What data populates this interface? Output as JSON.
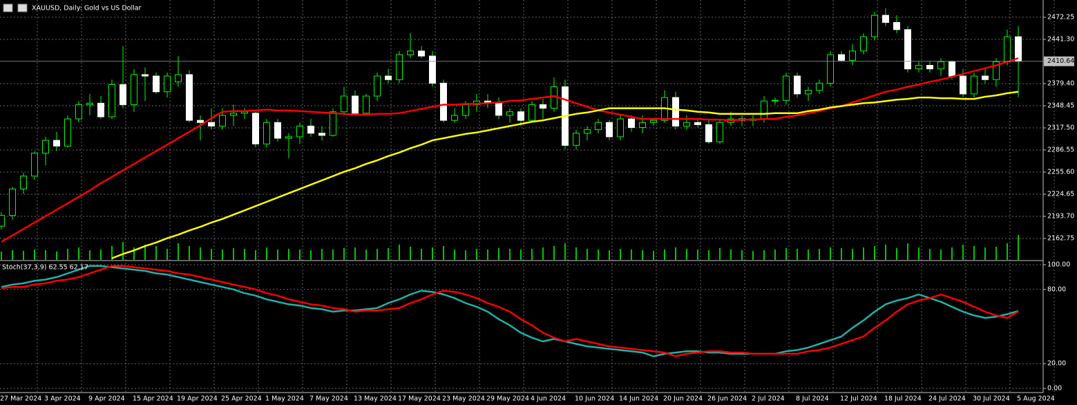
{
  "header": {
    "symbol": "XAUUSD, Daily:  Gold vs US Dollar"
  },
  "chart_data": [
    {
      "type": "candlestick",
      "categories": [
        "27 Mar 2024",
        null,
        null,
        null,
        "3 Apr 2024",
        null,
        null,
        null,
        "9 Apr 2024",
        null,
        null,
        null,
        "15 Apr 2024",
        null,
        null,
        null,
        "19 Apr 2024",
        null,
        null,
        null,
        "25 Apr 2024",
        null,
        null,
        null,
        "1 May 2024",
        null,
        null,
        null,
        "7 May 2024",
        null,
        null,
        null,
        "13 May 2024",
        null,
        null,
        null,
        "17 May 2024",
        null,
        null,
        null,
        "23 May 2024",
        null,
        null,
        null,
        "29 May 2024",
        null,
        null,
        null,
        "4 Jun 2024",
        null,
        null,
        null,
        "10 Jun 2024",
        null,
        null,
        null,
        "14 Jun 2024",
        null,
        null,
        null,
        "20 Jun 2024",
        null,
        null,
        null,
        "26 Jun 2024",
        null,
        null,
        null,
        "2 Jul 2024",
        null,
        null,
        null,
        "8 Jul 2024",
        null,
        null,
        null,
        "12 Jul 2024",
        null,
        null,
        null,
        "18 Jul 2024",
        null,
        null,
        null,
        "24 Jul 2024",
        null,
        null,
        null,
        "30 Jul 2024",
        null,
        null,
        null,
        "5 Aug 2024"
      ],
      "ohlc": [
        [
          2180,
          2200,
          2175,
          2195
        ],
        [
          2195,
          2235,
          2190,
          2232
        ],
        [
          2232,
          2255,
          2225,
          2250
        ],
        [
          2250,
          2285,
          2245,
          2282
        ],
        [
          2282,
          2305,
          2265,
          2300
        ],
        [
          2300,
          2312,
          2285,
          2292
        ],
        [
          2292,
          2335,
          2290,
          2330
        ],
        [
          2330,
          2355,
          2325,
          2350
        ],
        [
          2350,
          2365,
          2335,
          2352
        ],
        [
          2352,
          2362,
          2330,
          2333
        ],
        [
          2333,
          2385,
          2330,
          2378
        ],
        [
          2378,
          2432,
          2345,
          2350
        ],
        [
          2350,
          2400,
          2340,
          2392
        ],
        [
          2392,
          2402,
          2355,
          2390
        ],
        [
          2390,
          2395,
          2365,
          2368
        ],
        [
          2368,
          2395,
          2360,
          2390
        ],
        [
          2382,
          2418,
          2375,
          2392
        ],
        [
          2392,
          2398,
          2325,
          2328
        ],
        [
          2328,
          2335,
          2300,
          2325
        ],
        [
          2325,
          2345,
          2315,
          2320
        ],
        [
          2320,
          2345,
          2315,
          2335
        ],
        [
          2335,
          2350,
          2320,
          2338
        ],
        [
          2338,
          2345,
          2330,
          2340
        ],
        [
          2338,
          2340,
          2290,
          2295
        ],
        [
          2295,
          2330,
          2290,
          2325
        ],
        [
          2325,
          2330,
          2298,
          2303
        ],
        [
          2303,
          2310,
          2275,
          2305
        ],
        [
          2305,
          2325,
          2295,
          2320
        ],
        [
          2320,
          2330,
          2305,
          2310
        ],
        [
          2310,
          2320,
          2300,
          2307
        ],
        [
          2307,
          2345,
          2305,
          2340
        ],
        [
          2340,
          2375,
          2335,
          2362
        ],
        [
          2362,
          2370,
          2335,
          2338
        ],
        [
          2338,
          2365,
          2335,
          2362
        ],
        [
          2362,
          2395,
          2355,
          2390
        ],
        [
          2390,
          2400,
          2380,
          2385
        ],
        [
          2385,
          2425,
          2380,
          2420
        ],
        [
          2420,
          2450,
          2415,
          2425
        ],
        [
          2425,
          2432,
          2415,
          2418
        ],
        [
          2418,
          2425,
          2375,
          2380
        ],
        [
          2380,
          2385,
          2325,
          2328
        ],
        [
          2328,
          2345,
          2325,
          2335
        ],
        [
          2335,
          2355,
          2330,
          2350
        ],
        [
          2350,
          2365,
          2340,
          2355
        ],
        [
          2355,
          2365,
          2345,
          2352
        ],
        [
          2352,
          2360,
          2330,
          2335
        ],
        [
          2335,
          2345,
          2325,
          2340
        ],
        [
          2340,
          2345,
          2320,
          2328
        ],
        [
          2328,
          2355,
          2325,
          2350
        ],
        [
          2350,
          2358,
          2330,
          2345
        ],
        [
          2345,
          2388,
          2340,
          2375
        ],
        [
          2375,
          2385,
          2287,
          2293
        ],
        [
          2293,
          2315,
          2287,
          2310
        ],
        [
          2310,
          2320,
          2300,
          2315
        ],
        [
          2315,
          2330,
          2310,
          2325
        ],
        [
          2325,
          2328,
          2300,
          2305
        ],
        [
          2305,
          2335,
          2300,
          2330
        ],
        [
          2330,
          2335,
          2312,
          2318
        ],
        [
          2318,
          2335,
          2310,
          2325
        ],
        [
          2325,
          2330,
          2320,
          2328
        ],
        [
          2328,
          2370,
          2325,
          2360
        ],
        [
          2360,
          2368,
          2315,
          2320
        ],
        [
          2320,
          2335,
          2315,
          2325
        ],
        [
          2325,
          2330,
          2318,
          2322
        ],
        [
          2322,
          2330,
          2295,
          2298
        ],
        [
          2298,
          2330,
          2295,
          2325
        ],
        [
          2325,
          2340,
          2320,
          2330
        ],
        [
          2330,
          2335,
          2320,
          2328
        ],
        [
          2328,
          2335,
          2320,
          2330
        ],
        [
          2330,
          2362,
          2325,
          2355
        ],
        [
          2355,
          2360,
          2350,
          2356
        ],
        [
          2356,
          2395,
          2350,
          2390
        ],
        [
          2390,
          2395,
          2360,
          2365
        ],
        [
          2365,
          2375,
          2355,
          2370
        ],
        [
          2370,
          2385,
          2365,
          2380
        ],
        [
          2380,
          2425,
          2375,
          2420
        ],
        [
          2420,
          2425,
          2410,
          2412
        ],
        [
          2412,
          2435,
          2405,
          2425
        ],
        [
          2425,
          2450,
          2420,
          2445
        ],
        [
          2445,
          2480,
          2440,
          2475
        ],
        [
          2475,
          2485,
          2460,
          2465
        ],
        [
          2465,
          2475,
          2450,
          2455
        ],
        [
          2455,
          2460,
          2395,
          2400
        ],
        [
          2400,
          2410,
          2395,
          2405
        ],
        [
          2405,
          2410,
          2395,
          2400
        ],
        [
          2400,
          2415,
          2390,
          2410
        ],
        [
          2410,
          2412,
          2385,
          2390
        ],
        [
          2390,
          2400,
          2360,
          2365
        ],
        [
          2365,
          2395,
          2360,
          2390
        ],
        [
          2390,
          2400,
          2380,
          2385
        ],
        [
          2385,
          2415,
          2375,
          2410
        ],
        [
          2410,
          2455,
          2405,
          2445
        ],
        [
          2445,
          2460,
          2360,
          2410.64
        ]
      ],
      "up_color": "#00ff00",
      "down_color": "#ffffff",
      "volume_color": "#00c800",
      "volume": [
        12,
        14,
        13,
        15,
        14,
        12,
        16,
        18,
        14,
        15,
        20,
        26,
        18,
        22,
        20,
        16,
        24,
        20,
        18,
        16,
        15,
        17,
        16,
        14,
        18,
        15,
        16,
        15,
        14,
        16,
        15,
        17,
        18,
        15,
        16,
        17,
        22,
        19,
        16,
        18,
        20,
        15,
        14,
        16,
        15,
        17,
        16,
        15,
        16,
        18,
        20,
        24,
        18,
        16,
        15,
        14,
        16,
        15,
        14,
        13,
        15,
        18,
        16,
        15,
        14,
        17,
        15,
        14,
        13,
        14,
        15,
        17,
        16,
        15,
        16,
        18,
        17,
        16,
        18,
        20,
        22,
        17,
        24,
        18,
        16,
        15,
        18,
        22,
        20,
        18,
        19,
        24,
        36
      ],
      "series": [
        {
          "color": "#ff0000",
          "values": [
            2158,
            2167,
            2176,
            2185,
            2194,
            2203,
            2212,
            2221,
            2230,
            2240,
            2249,
            2258,
            2267,
            2276,
            2285,
            2294,
            2303,
            2312,
            2321,
            2331,
            2340,
            2341,
            2341,
            2342,
            2343,
            2342,
            2342,
            2341,
            2340,
            2339,
            2338,
            2337,
            2336,
            2336,
            2337,
            2337,
            2338,
            2341,
            2344,
            2347,
            2350,
            2350,
            2351,
            2351,
            2352,
            2353,
            2355,
            2356,
            2358,
            2360,
            2362,
            2357,
            2352,
            2347,
            2342,
            2339,
            2336,
            2333,
            2330,
            2330,
            2330,
            2330,
            2330,
            2330,
            2329,
            2329,
            2328,
            2329,
            2329,
            2330,
            2330,
            2333,
            2335,
            2338,
            2341,
            2345,
            2348,
            2353,
            2358,
            2363,
            2368,
            2371,
            2375,
            2378,
            2382,
            2385,
            2389,
            2393,
            2397,
            2401,
            2405,
            2410,
            2415
          ]
        },
        {
          "color": "#ffff00",
          "values": [
            null,
            null,
            null,
            null,
            null,
            null,
            null,
            null,
            null,
            null,
            2135,
            2141,
            2146,
            2152,
            2157,
            2163,
            2168,
            2174,
            2179,
            2185,
            2190,
            2196,
            2202,
            2208,
            2214,
            2220,
            2226,
            2232,
            2238,
            2244,
            2250,
            2256,
            2261,
            2267,
            2272,
            2278,
            2283,
            2289,
            2294,
            2300,
            2303,
            2306,
            2309,
            2311,
            2314,
            2317,
            2320,
            2323,
            2326,
            2328,
            2331,
            2334,
            2337,
            2339,
            2342,
            2345,
            2345,
            2345,
            2345,
            2345,
            2345,
            2343,
            2342,
            2340,
            2339,
            2337,
            2337,
            2337,
            2337,
            2337,
            2338,
            2338,
            2338,
            2341,
            2343,
            2346,
            2348,
            2350,
            2352,
            2353,
            2355,
            2357,
            2358,
            2360,
            2360,
            2359,
            2359,
            2358,
            2358,
            2361,
            2363,
            2366,
            2368
          ]
        }
      ],
      "ylim": [
        2132.76,
        2496.43
      ],
      "yticks": [
        2472.25,
        {
          "value": 2441.3,
          "label": "2441.30"
        },
        {
          "value": 2379.4,
          "label": "2379.40"
        },
        2348.45,
        {
          "value": 2317.5,
          "label": "2317.50"
        },
        2286.55,
        {
          "value": 2255.6,
          "label": "2255.60"
        },
        2224.65,
        {
          "value": 2193.7,
          "label": "2193.70"
        },
        2162.75
      ],
      "current_price": {
        "value": 2410.64,
        "label": "2410.64"
      },
      "grid": true
    },
    {
      "type": "line",
      "title": "Stoch(37,3,9) 62.55 62.17",
      "series": [
        {
          "color": "#20b2aa",
          "values": [
            82,
            84,
            85,
            87,
            88,
            90,
            93,
            96,
            99,
            99,
            98,
            97,
            96,
            95,
            93,
            92,
            90,
            88,
            86,
            84,
            82,
            80,
            77,
            75,
            72,
            70,
            68,
            67,
            65,
            64,
            62,
            63,
            63,
            64,
            65,
            69,
            72,
            76,
            79,
            78,
            76,
            73,
            69,
            66,
            62,
            56,
            51,
            45,
            41,
            38,
            40,
            38,
            36,
            34,
            33,
            32,
            31,
            30,
            29,
            26,
            28,
            29,
            30,
            30,
            29,
            29,
            28,
            28,
            28,
            28,
            28,
            30,
            31,
            33,
            36,
            39,
            42,
            49,
            55,
            62,
            68,
            71,
            73,
            76,
            73,
            70,
            66,
            62,
            59,
            57,
            58,
            60,
            62.55
          ]
        },
        {
          "color": "#ff0000",
          "values": [
            81,
            82,
            82,
            84,
            85,
            87,
            88,
            90,
            93,
            96,
            99,
            99,
            98,
            97,
            96,
            95,
            93,
            92,
            90,
            88,
            86,
            84,
            82,
            80,
            77,
            75,
            72,
            70,
            68,
            67,
            65,
            64,
            62,
            63,
            63,
            64,
            65,
            69,
            72,
            76,
            79,
            78,
            76,
            73,
            69,
            66,
            62,
            56,
            51,
            45,
            41,
            38,
            40,
            38,
            36,
            34,
            33,
            32,
            31,
            30,
            29,
            26,
            28,
            29,
            30,
            30,
            29,
            29,
            28,
            28,
            28,
            28,
            28,
            30,
            31,
            33,
            36,
            39,
            42,
            49,
            55,
            62,
            68,
            71,
            73,
            76,
            73,
            70,
            66,
            62,
            59,
            57,
            62.17
          ]
        }
      ],
      "ylim": [
        -3.35,
        102.8
      ],
      "yticks": [
        {
          "value": 100,
          "label": "100.00"
        },
        {
          "value": 80,
          "label": "80.00"
        },
        {
          "value": 20,
          "label": "20.00"
        },
        {
          "value": 0,
          "label": "0.00"
        }
      ],
      "grid": true
    }
  ]
}
